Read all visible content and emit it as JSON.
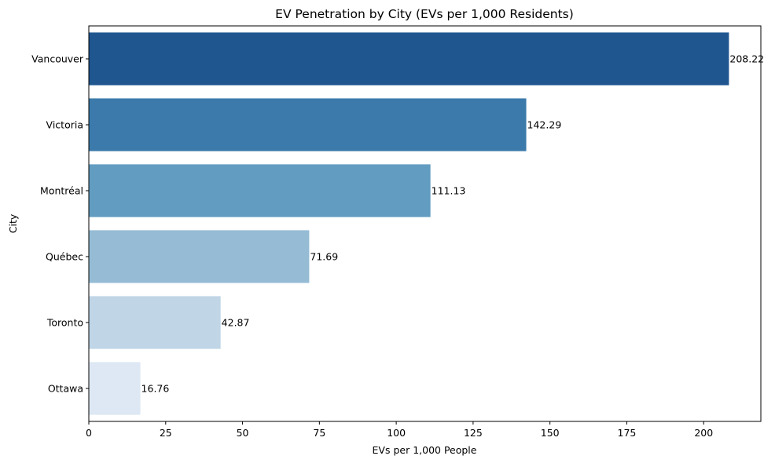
{
  "chart_data": {
    "type": "bar",
    "orientation": "horizontal",
    "title": "EV Penetration by City (EVs per 1,000 Residents)",
    "xlabel": "EVs per 1,000 People",
    "ylabel": "City",
    "categories": [
      "Vancouver",
      "Victoria",
      "Montréal",
      "Québec",
      "Toronto",
      "Ottawa"
    ],
    "values": [
      208.22,
      142.29,
      111.13,
      71.69,
      42.87,
      16.76
    ],
    "value_labels": [
      "208.22",
      "142.29",
      "111.13",
      "71.69",
      "42.87",
      "16.76"
    ],
    "bar_colors": [
      "#1f568f",
      "#3b7aab",
      "#629cc1",
      "#96bcd5",
      "#c0d6e7",
      "#dde8f4"
    ],
    "xlim": [
      0,
      218.6
    ],
    "xticks": [
      0,
      25,
      50,
      75,
      100,
      125,
      150,
      175,
      200
    ],
    "xtick_labels": [
      "0",
      "25",
      "50",
      "75",
      "100",
      "125",
      "150",
      "175",
      "200"
    ],
    "grid": false,
    "legend": "none"
  }
}
